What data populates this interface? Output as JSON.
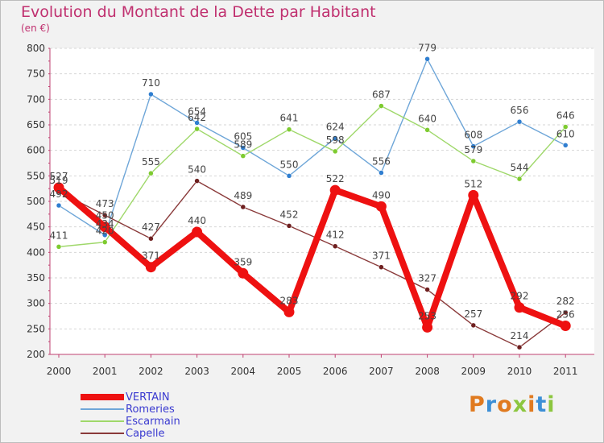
{
  "header": {
    "title": "Evolution du Montant de la Dette par Habitant",
    "unit": "(en €)"
  },
  "logo": {
    "text": "Proxiti",
    "colors": [
      "#e07a1f",
      "#3c8fd6",
      "#e07a1f",
      "#8cc63f",
      "#e07a1f",
      "#3c8fd6",
      "#8cc63f"
    ]
  },
  "chart_data": {
    "type": "line",
    "title": "Evolution du Montant de la Dette par Habitant",
    "ylabel": "(en €)",
    "categories": [
      "2000",
      "2001",
      "2002",
      "2003",
      "2004",
      "2005",
      "2006",
      "2007",
      "2008",
      "2009",
      "2010",
      "2011"
    ],
    "ylim": [
      200,
      800
    ],
    "yticks": [
      "200",
      "250",
      "300",
      "350",
      "400",
      "450",
      "500",
      "550",
      "600",
      "650",
      "700",
      "750",
      "800"
    ],
    "grid": "dashed-horizontal",
    "legend_position": "bottom-left",
    "series": [
      {
        "name": "VERTAIN",
        "color": "#ee1111",
        "marker": "#ee1111",
        "values": [
          527,
          450,
          371,
          440,
          359,
          283,
          522,
          490,
          253,
          512,
          292,
          256
        ]
      },
      {
        "name": "Romeries",
        "color": "#6ea6d8",
        "marker": "#2f7ed0",
        "values": [
          492,
          434,
          710,
          654,
          605,
          550,
          624,
          556,
          779,
          608,
          656,
          610
        ]
      },
      {
        "name": "Escarmain",
        "color": "#9fd86a",
        "marker": "#7ecb30",
        "values": [
          411,
          420,
          555,
          642,
          589,
          641,
          598,
          687,
          640,
          579,
          544,
          646
        ]
      },
      {
        "name": "Capelle",
        "color": "#8a3a3a",
        "marker": "#6e1f1f",
        "values": [
          519,
          473,
          427,
          540,
          489,
          452,
          412,
          371,
          327,
          257,
          214,
          282
        ]
      }
    ]
  }
}
